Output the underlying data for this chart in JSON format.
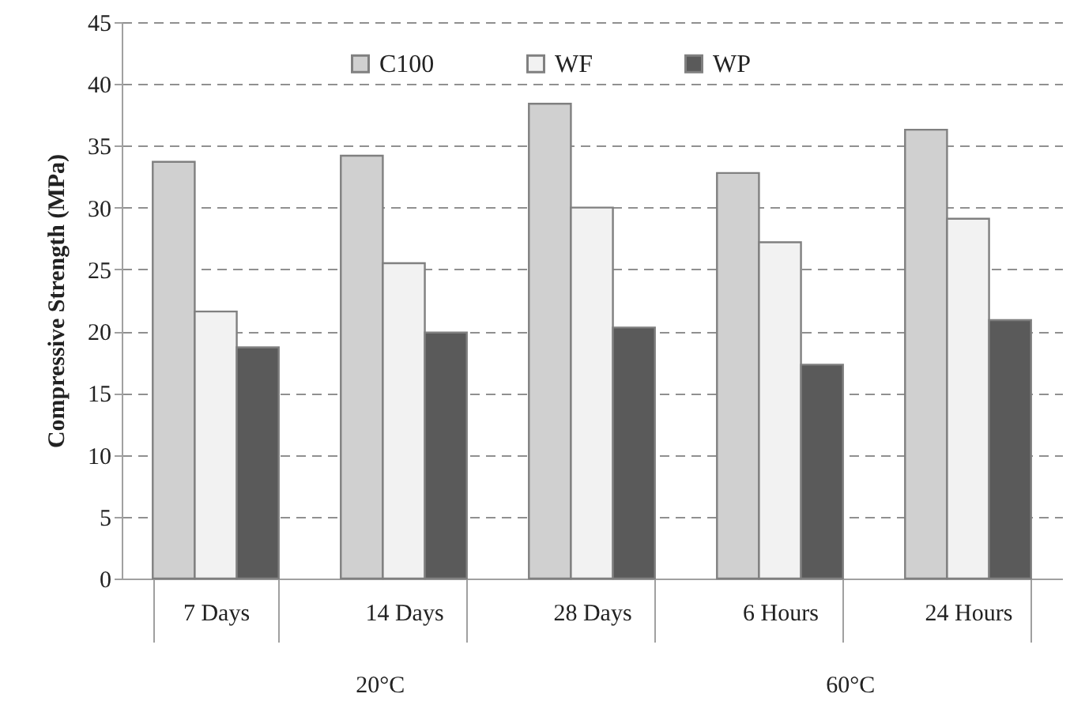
{
  "chart_data": {
    "type": "bar",
    "ylabel": "Compressive Strength (MPa)",
    "categories": [
      "7 Days",
      "14 Days",
      "28 Days",
      "6 Hours",
      "24 Hours"
    ],
    "series": [
      {
        "name": "C100",
        "color": "#d0d0d0",
        "values": [
          33.7,
          34.2,
          38.4,
          32.8,
          36.3
        ]
      },
      {
        "name": "WF",
        "color": "#f2f2f2",
        "values": [
          21.6,
          25.5,
          30.0,
          27.2,
          29.1
        ]
      },
      {
        "name": "WP",
        "color": "#5a5a5a",
        "values": [
          18.7,
          19.9,
          20.3,
          17.3,
          20.9
        ]
      }
    ],
    "ylim": [
      0,
      45
    ],
    "yticks": [
      0,
      5,
      10,
      15,
      20,
      25,
      30,
      35,
      40,
      45
    ],
    "grid": "y",
    "legend": "top",
    "annotations": [
      "20°C",
      "60°C"
    ]
  }
}
